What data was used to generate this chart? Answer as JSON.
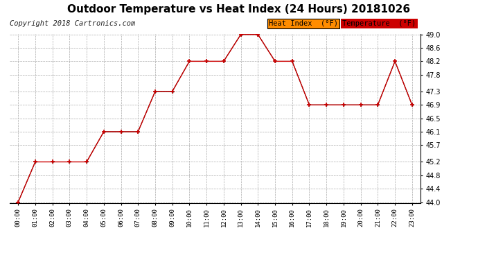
{
  "title": "Outdoor Temperature vs Heat Index (24 Hours) 20181026",
  "copyright": "Copyright 2018 Cartronics.com",
  "hours": [
    "00:00",
    "01:00",
    "02:00",
    "03:00",
    "04:00",
    "05:00",
    "06:00",
    "07:00",
    "08:00",
    "09:00",
    "10:00",
    "11:00",
    "12:00",
    "13:00",
    "14:00",
    "15:00",
    "16:00",
    "17:00",
    "18:00",
    "19:00",
    "20:00",
    "21:00",
    "22:00",
    "23:00"
  ],
  "temperature": [
    44.0,
    45.2,
    45.2,
    45.2,
    45.2,
    46.1,
    46.1,
    46.1,
    47.3,
    47.3,
    48.2,
    48.2,
    48.2,
    49.0,
    49.0,
    48.2,
    48.2,
    46.9,
    46.9,
    46.9,
    46.9,
    46.9,
    48.2,
    46.9
  ],
  "heat_index": [
    44.0,
    45.2,
    45.2,
    45.2,
    45.2,
    46.1,
    46.1,
    46.1,
    47.3,
    47.3,
    48.2,
    48.2,
    48.2,
    49.0,
    49.0,
    48.2,
    48.2,
    46.9,
    46.9,
    46.9,
    46.9,
    46.9,
    48.2,
    46.9
  ],
  "temp_color": "#000000",
  "heat_color": "#cc0000",
  "ylim_min": 44.0,
  "ylim_max": 49.0,
  "yticks": [
    44.0,
    44.4,
    44.8,
    45.2,
    45.7,
    46.1,
    46.5,
    46.9,
    47.3,
    47.8,
    48.2,
    48.6,
    49.0
  ],
  "background_color": "#ffffff",
  "plot_bg_color": "#ffffff",
  "grid_color": "#aaaaaa",
  "legend_heat_bg": "#ff8c00",
  "legend_temp_bg": "#cc0000",
  "title_fontsize": 11,
  "copyright_fontsize": 7.5,
  "legend_fontsize": 7.5
}
